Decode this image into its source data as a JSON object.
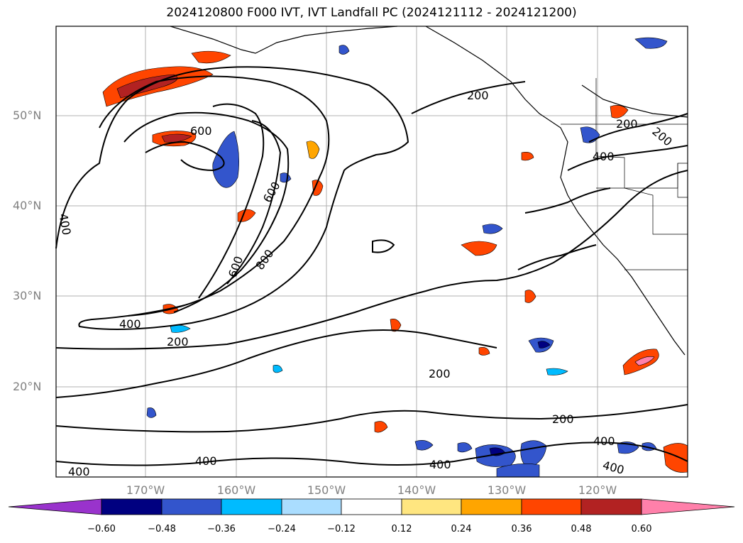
{
  "title": "2024120800 F000 IVT, IVT Landfall PC (2024121112 - 2024121200)",
  "lat_labels": [
    "50°N",
    "40°N",
    "30°N",
    "20°N"
  ],
  "lon_labels": [
    "170°W",
    "160°W",
    "150°W",
    "140°W",
    "130°W",
    "120°W"
  ],
  "contour_labels": [
    "200",
    "200",
    "200",
    "200",
    "200",
    "400",
    "400",
    "400",
    "400",
    "400",
    "400",
    "400",
    "600",
    "600",
    "600",
    "800",
    "200",
    "400"
  ],
  "colorbar": {
    "ticks": [
      "−0.60",
      "−0.48",
      "−0.36",
      "−0.24",
      "−0.12",
      "0.12",
      "0.24",
      "0.36",
      "0.48",
      "0.60"
    ],
    "colors": [
      "#9933cc",
      "#000080",
      "#3355cc",
      "#00bbff",
      "#aaddff",
      "#ffffff",
      "#ffe680",
      "#ffa500",
      "#ff4500",
      "#b22222",
      "#ff80aa"
    ]
  },
  "colors": {
    "positive_strong": "#b22222",
    "positive_mid": "#ff4500",
    "positive_low": "#ffa500",
    "negative_strong": "#000080",
    "negative_mid": "#3355cc",
    "negative_low": "#00bbff"
  }
}
